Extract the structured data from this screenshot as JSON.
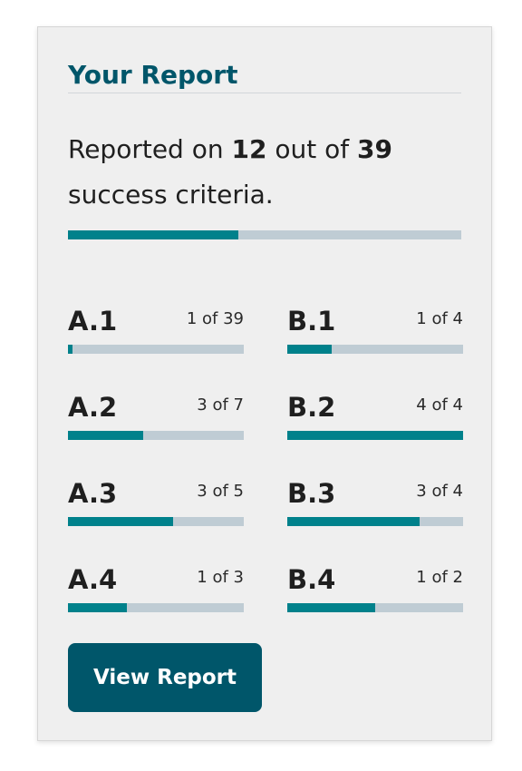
{
  "card": {
    "title": "Your Report",
    "summary": {
      "prefix": "Reported on ",
      "reported": "12",
      "middle": " out of ",
      "total": "39",
      "suffix": "success criteria."
    },
    "overall_progress": 0.434,
    "criteria": [
      {
        "code": "A.1",
        "count": "1 of 39",
        "progress": 0.026
      },
      {
        "code": "B.1",
        "count": "1 of 4",
        "progress": 0.25
      },
      {
        "code": "A.2",
        "count": "3 of 7",
        "progress": 0.429
      },
      {
        "code": "B.2",
        "count": "4 of 4",
        "progress": 1.0
      },
      {
        "code": "A.3",
        "count": "3 of 5",
        "progress": 0.6
      },
      {
        "code": "B.3",
        "count": "3 of 4",
        "progress": 0.75
      },
      {
        "code": "A.4",
        "count": "1 of 3",
        "progress": 0.333
      },
      {
        "code": "B.4",
        "count": "1 of 2",
        "progress": 0.5
      }
    ],
    "button_label": "View Report"
  },
  "colors": {
    "accent": "#00566a",
    "progress_fill": "#00818b",
    "progress_track": "#bfccd4",
    "card_background": "#efefef"
  }
}
